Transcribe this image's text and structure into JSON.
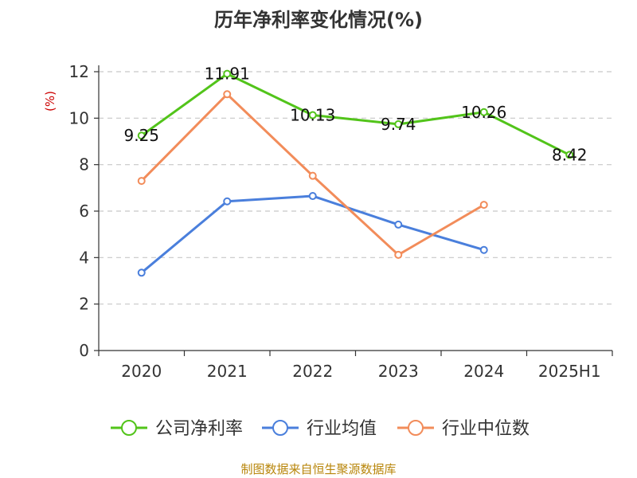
{
  "chart_data": {
    "type": "line",
    "title": "历年净利率变化情况(%)",
    "unit_label": "(%)",
    "categories": [
      "2020",
      "2021",
      "2022",
      "2023",
      "2024",
      "2025H1"
    ],
    "ylim": [
      0,
      12
    ],
    "yticks": [
      0,
      2,
      4,
      6,
      8,
      10,
      12
    ],
    "grid": true,
    "legend_position": "bottom",
    "series": [
      {
        "name": "公司净利率",
        "color": "#52c41a",
        "values": [
          9.25,
          11.91,
          10.13,
          9.74,
          10.26,
          8.42
        ],
        "labels": [
          "9.25",
          "11.91",
          "10.13",
          "9.74",
          "10.26",
          "8.42"
        ]
      },
      {
        "name": "行业均值",
        "color": "#4a7fdc",
        "values": [
          3.35,
          6.42,
          6.65,
          5.42,
          4.33,
          null
        ],
        "labels": []
      },
      {
        "name": "行业中位数",
        "color": "#f28c5a",
        "values": [
          7.3,
          11.03,
          7.52,
          4.12,
          6.27,
          null
        ],
        "labels": []
      }
    ]
  },
  "source_text": "制图数据来自恒生聚源数据库"
}
